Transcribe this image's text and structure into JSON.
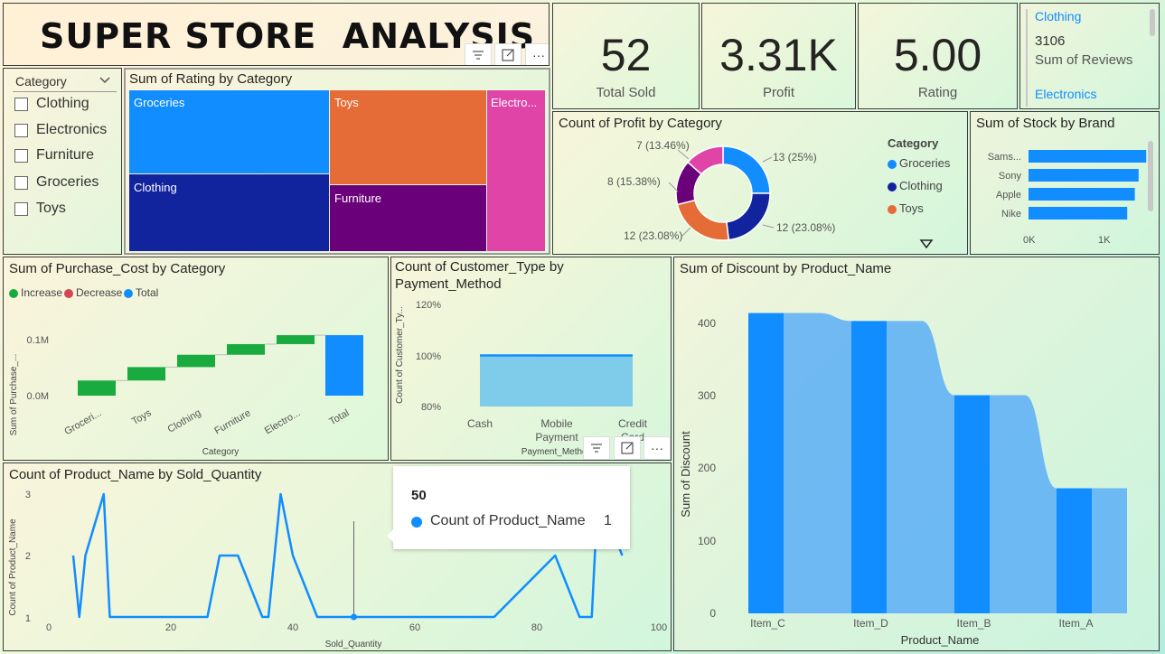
{
  "title": "SUPER STORE  ANALYSIS",
  "colors": {
    "groceries": "#118DFF",
    "clothing": "#12239E",
    "toys": "#E66C37",
    "furniture": "#6B007B",
    "electronics": "#E044A7",
    "increase": "#1AAB40",
    "decrease": "#D64554",
    "total": "#118DFF",
    "line": "#118DFF"
  },
  "slicer": {
    "header": "Category",
    "items": [
      "Clothing",
      "Electronics",
      "Furniture",
      "Groceries",
      "Toys"
    ]
  },
  "cards": {
    "total_sold": {
      "value": "52",
      "label": "Total Sold"
    },
    "profit": {
      "value": "3.31K",
      "label": "Profit"
    },
    "rating": {
      "value": "5.00",
      "label": "Rating"
    }
  },
  "reviews_card": {
    "category1": "Clothing",
    "value": "3106",
    "label": "Sum of Reviews",
    "category2": "Electronics"
  },
  "treemap": {
    "title": "Sum of Rating by Category",
    "labels": [
      "Groceries",
      "Toys",
      "Electro...",
      "Clothing",
      "Furniture"
    ]
  },
  "donut": {
    "title": "Count of Profit by Category",
    "legend_title": "Category",
    "legend": [
      "Groceries",
      "Clothing",
      "Toys"
    ],
    "labels": [
      "13 (25%)",
      "12 (23.08%)",
      "12 (23.08%)",
      "8 (15.38%)",
      "7 (13.46%)"
    ]
  },
  "stock": {
    "title": "Sum of Stock by Brand",
    "x_ticks": [
      "0K",
      "1K"
    ]
  },
  "waterfall": {
    "title": "Sum of Purchase_Cost by Category",
    "legend": [
      "Increase",
      "Decrease",
      "Total"
    ],
    "ylabel": "Sum of Purchase_...",
    "xlabel": "Category",
    "y_ticks": [
      "0.0M",
      "0.1M"
    ]
  },
  "customer": {
    "title_line1": "Count of Customer_Type by",
    "title_line2": "Payment_Method",
    "ylabel": "Count of Customer_Ty...",
    "xlabel": "Payment_Method",
    "y_ticks": [
      "120%",
      "100%",
      "80%"
    ]
  },
  "discount": {
    "title": "Sum of Discount by Product_Name",
    "ylabel": "Sum of Discount",
    "xlabel": "Product_Name",
    "y_ticks": [
      "400",
      "300",
      "200",
      "100",
      "0"
    ]
  },
  "soldqty": {
    "title": "Count of Product_Name by Sold_Quantity",
    "ylabel": "Count of Product_Name",
    "xlabel": "Sold_Quantity",
    "y_ticks": [
      "3",
      "2",
      "1"
    ],
    "x_ticks": [
      "0",
      "20",
      "40",
      "60",
      "80",
      "100"
    ]
  },
  "tooltip": {
    "title": "50",
    "label": "Count of Product_Name",
    "value": "1"
  },
  "chart_data": [
    {
      "type": "treemap",
      "title": "Sum of Rating by Category",
      "categories": [
        "Groceries",
        "Toys",
        "Clothing",
        "Furniture",
        "Electronics"
      ]
    },
    {
      "type": "pie",
      "title": "Count of Profit by Category",
      "categories": [
        "Groceries",
        "Clothing",
        "Toys",
        "Furniture",
        "Electronics"
      ],
      "values": [
        13,
        12,
        12,
        8,
        7
      ],
      "percent": [
        25,
        23.08,
        23.08,
        15.38,
        13.46
      ]
    },
    {
      "type": "bar",
      "orientation": "horizontal",
      "title": "Sum of Stock by Brand",
      "categories": [
        "Sams...",
        "Sony",
        "Apple",
        "Nike"
      ],
      "values": [
        1.55,
        1.45,
        1.4,
        1.3
      ],
      "unit": "K",
      "xlim": [
        0,
        1.6
      ]
    },
    {
      "type": "waterfall",
      "title": "Sum of Purchase_Cost by Category",
      "categories": [
        "Groceri...",
        "Toys",
        "Clothing",
        "Furniture",
        "Electro...",
        "Total"
      ],
      "values": [
        0.027,
        0.024,
        0.022,
        0.019,
        0.016,
        0.108
      ],
      "ylim": [
        0,
        0.13
      ],
      "unit": "M",
      "xlabel": "Category",
      "ylabel": "Sum of Purchase_..."
    },
    {
      "type": "area",
      "title": "Count of Customer_Type by Payment_Method",
      "categories": [
        "Cash",
        "Mobile Payment",
        "Credit Card"
      ],
      "values": [
        100,
        100,
        100
      ],
      "ylim": [
        80,
        120
      ],
      "unit": "%"
    },
    {
      "type": "bar",
      "title": "Sum of Discount by Product_Name",
      "categories": [
        "Item_C",
        "Item_D",
        "Item_B",
        "Item_A"
      ],
      "values": [
        413,
        402,
        300,
        172
      ],
      "ylim": [
        0,
        430
      ],
      "xlabel": "Product_Name",
      "ylabel": "Sum of Discount"
    },
    {
      "type": "line",
      "title": "Count of Product_Name by Sold_Quantity",
      "x": [
        4,
        5,
        6,
        9,
        10,
        26,
        28,
        31,
        35,
        36,
        38,
        40,
        44,
        50,
        73,
        83,
        87,
        89,
        90,
        94
      ],
      "y": [
        2,
        1,
        2,
        3,
        1,
        1,
        2,
        2,
        1,
        1,
        3,
        2,
        1,
        1,
        1,
        2,
        1,
        1,
        3,
        2
      ],
      "xlim": [
        0,
        100
      ],
      "ylim": [
        1,
        3
      ],
      "xlabel": "Sold_Quantity",
      "ylabel": "Count of Product_Name"
    }
  ]
}
